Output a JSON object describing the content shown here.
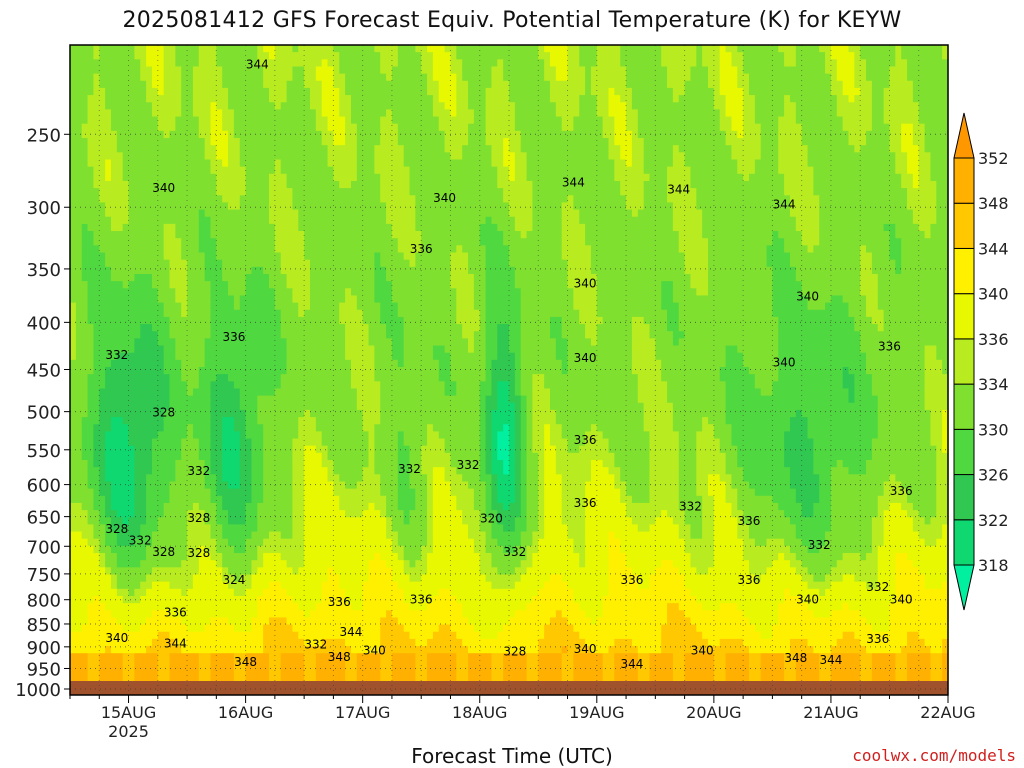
{
  "chart_data": {
    "type": "heatmap",
    "title": "2025081412 GFS Forecast Equiv. Potential Temperature (K) for KEYW",
    "xlabel": "Forecast Time (UTC)",
    "ylabel": "",
    "y_axis": {
      "scale": "log",
      "direction": "inverted",
      "ylim": [
        1000,
        200
      ],
      "ticks": [
        250,
        300,
        350,
        400,
        450,
        500,
        550,
        600,
        650,
        700,
        750,
        800,
        850,
        900,
        950,
        1000
      ]
    },
    "x_axis": {
      "xlim_days": [
        14.5,
        22.0
      ],
      "ticks": [
        {
          "day": 15,
          "label": "15AUG",
          "sublabel": "2025"
        },
        {
          "day": 16,
          "label": "16AUG",
          "sublabel": ""
        },
        {
          "day": 17,
          "label": "17AUG",
          "sublabel": ""
        },
        {
          "day": 18,
          "label": "18AUG",
          "sublabel": ""
        },
        {
          "day": 19,
          "label": "19AUG",
          "sublabel": ""
        },
        {
          "day": 20,
          "label": "20AUG",
          "sublabel": ""
        },
        {
          "day": 21,
          "label": "21AUG",
          "sublabel": ""
        },
        {
          "day": 22,
          "label": "22AUG",
          "sublabel": ""
        }
      ]
    },
    "grid": true,
    "colorbar": {
      "levels": [
        318,
        322,
        326,
        330,
        334,
        336,
        340,
        344,
        348,
        352
      ],
      "colors": [
        "#00f0a0",
        "#10d870",
        "#30c850",
        "#50d840",
        "#80e030",
        "#b8ec20",
        "#e8f800",
        "#fff000",
        "#ffc800",
        "#ffb000",
        "#ff9800"
      ]
    },
    "contour_labels": [
      {
        "t": 16.1,
        "p": 210,
        "v": "344"
      },
      {
        "t": 18.8,
        "p": 282,
        "v": "344"
      },
      {
        "t": 19.7,
        "p": 287,
        "v": "344"
      },
      {
        "t": 20.6,
        "p": 298,
        "v": "344"
      },
      {
        "t": 15.3,
        "p": 286,
        "v": "340"
      },
      {
        "t": 17.7,
        "p": 293,
        "v": "340"
      },
      {
        "t": 18.9,
        "p": 363,
        "v": "340"
      },
      {
        "t": 20.8,
        "p": 375,
        "v": "340"
      },
      {
        "t": 17.5,
        "p": 333,
        "v": "336"
      },
      {
        "t": 15.9,
        "p": 415,
        "v": "336"
      },
      {
        "t": 21.5,
        "p": 425,
        "v": "336"
      },
      {
        "t": 14.9,
        "p": 434,
        "v": "332"
      },
      {
        "t": 18.9,
        "p": 437,
        "v": "340"
      },
      {
        "t": 20.6,
        "p": 442,
        "v": "340"
      },
      {
        "t": 15.3,
        "p": 501,
        "v": "328"
      },
      {
        "t": 18.9,
        "p": 537,
        "v": "336"
      },
      {
        "t": 15.6,
        "p": 580,
        "v": "332"
      },
      {
        "t": 17.4,
        "p": 577,
        "v": "332"
      },
      {
        "t": 17.9,
        "p": 571,
        "v": "332"
      },
      {
        "t": 21.6,
        "p": 610,
        "v": "336"
      },
      {
        "t": 19.8,
        "p": 634,
        "v": "332"
      },
      {
        "t": 18.9,
        "p": 628,
        "v": "336"
      },
      {
        "t": 18.1,
        "p": 653,
        "v": "320"
      },
      {
        "t": 15.6,
        "p": 652,
        "v": "328"
      },
      {
        "t": 14.9,
        "p": 670,
        "v": "328"
      },
      {
        "t": 20.3,
        "p": 657,
        "v": "336"
      },
      {
        "t": 15.1,
        "p": 690,
        "v": "332"
      },
      {
        "t": 15.3,
        "p": 710,
        "v": "328"
      },
      {
        "t": 15.6,
        "p": 712,
        "v": "328"
      },
      {
        "t": 20.9,
        "p": 698,
        "v": "332"
      },
      {
        "t": 18.3,
        "p": 710,
        "v": "332"
      },
      {
        "t": 19.3,
        "p": 762,
        "v": "336"
      },
      {
        "t": 15.9,
        "p": 762,
        "v": "324"
      },
      {
        "t": 20.3,
        "p": 762,
        "v": "336"
      },
      {
        "t": 16.8,
        "p": 805,
        "v": "336"
      },
      {
        "t": 17.5,
        "p": 800,
        "v": "336"
      },
      {
        "t": 20.8,
        "p": 800,
        "v": "340"
      },
      {
        "t": 21.4,
        "p": 775,
        "v": "332"
      },
      {
        "t": 21.6,
        "p": 800,
        "v": "340"
      },
      {
        "t": 15.4,
        "p": 826,
        "v": "336"
      },
      {
        "t": 16.9,
        "p": 867,
        "v": "344"
      },
      {
        "t": 14.9,
        "p": 880,
        "v": "340"
      },
      {
        "t": 15.4,
        "p": 892,
        "v": "344"
      },
      {
        "t": 16.6,
        "p": 895,
        "v": "332"
      },
      {
        "t": 17.1,
        "p": 908,
        "v": "340"
      },
      {
        "t": 18.3,
        "p": 910,
        "v": "328"
      },
      {
        "t": 18.9,
        "p": 905,
        "v": "340"
      },
      {
        "t": 19.9,
        "p": 908,
        "v": "340"
      },
      {
        "t": 21.4,
        "p": 882,
        "v": "336"
      },
      {
        "t": 16.0,
        "p": 935,
        "v": "348"
      },
      {
        "t": 16.8,
        "p": 923,
        "v": "348"
      },
      {
        "t": 19.3,
        "p": 940,
        "v": "344"
      },
      {
        "t": 20.7,
        "p": 925,
        "v": "348"
      },
      {
        "t": 21.0,
        "p": 930,
        "v": "344"
      }
    ]
  },
  "credit": "coolwx.com/models"
}
